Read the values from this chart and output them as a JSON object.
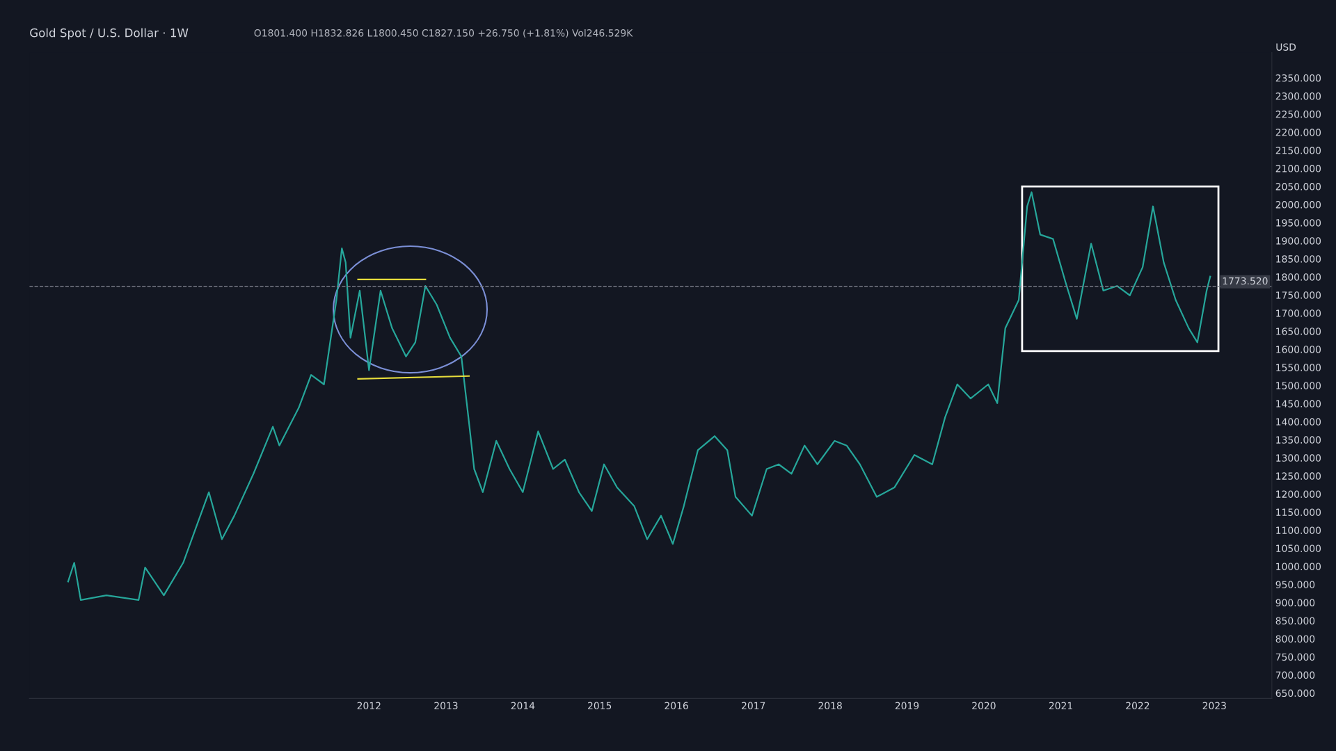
{
  "chart_data": {
    "type": "line",
    "title": "Gold Spot / U.S. Dollar · 1W",
    "subtitle": "O1801.400 H1832.826 L1800.450 C1827.150 +26.750 (+1.81%) Vol246.529K",
    "series": [
      {
        "color": "#26a69a",
        "x": [
          "2008-02",
          "2008-03",
          "2008-04",
          "2008-08",
          "2009-01",
          "2009-02",
          "2009-05",
          "2009-08",
          "2009-12",
          "2010-02",
          "2010-04",
          "2010-07",
          "2010-10",
          "2010-11",
          "2011-02",
          "2011-04",
          "2011-06",
          "2011-07-30",
          "2011-08-25",
          "2011-09-12",
          "2011-10-05",
          "2011-11-18",
          "2012-01-01",
          "2012-02-25",
          "2012-04-20",
          "2012-06-25",
          "2012-08-08",
          "2012-09-25",
          "2012-11-18",
          "2013-01-20",
          "2013-03-15",
          "2013-04-20",
          "2013-05-15",
          "2013-06-25",
          "2013-08-28",
          "2013-10-30",
          "2014-01-01",
          "2014-03-15",
          "2014-05-25",
          "2014-07-20",
          "2014-09-25",
          "2014-11-25",
          "2015-01-22",
          "2015-03-25",
          "2015-06-15",
          "2015-08-15",
          "2015-10-20",
          "2015-12-15",
          "2016-02-05",
          "2016-04-12",
          "2016-07-01",
          "2016-08-30",
          "2016-10-08",
          "2016-12-25",
          "2017-03-05",
          "2017-05-01",
          "2017-07-01",
          "2017-09-01",
          "2017-11-01",
          "2018-01-22",
          "2018-03-20",
          "2018-05-22",
          "2018-08-10",
          "2018-11-02",
          "2019-02-05",
          "2019-05-01",
          "2019-07-01",
          "2019-08-28",
          "2019-10-30",
          "2020-01-22",
          "2020-03-05",
          "2020-04-12",
          "2020-06-15",
          "2020-07-25",
          "2020-08-15",
          "2020-09-25",
          "2020-11-25",
          "2021-01-22",
          "2021-03-18",
          "2021-05-25",
          "2021-07-22",
          "2021-09-25",
          "2021-11-25",
          "2022-01-25",
          "2022-03-15",
          "2022-05-05",
          "2022-07-01",
          "2022-09-01",
          "2022-10-12",
          "2022-11-25",
          "2022-12-12"
        ],
        "values": [
          958,
          1010,
          907,
          920,
          907,
          997,
          920,
          1010,
          1205,
          1075,
          1140,
          1256,
          1386,
          1334,
          1438,
          1529,
          1503,
          1736,
          1879,
          1840,
          1632,
          1762,
          1542,
          1762,
          1658,
          1580,
          1619,
          1775,
          1723,
          1632,
          1580,
          1399,
          1269,
          1205,
          1347,
          1269,
          1205,
          1373,
          1269,
          1295,
          1205,
          1153,
          1282,
          1218,
          1166,
          1075,
          1140,
          1062,
          1166,
          1321,
          1360,
          1321,
          1192,
          1140,
          1269,
          1282,
          1256,
          1334,
          1282,
          1347,
          1334,
          1282,
          1192,
          1218,
          1308,
          1282,
          1412,
          1503,
          1464,
          1503,
          1451,
          1658,
          1736,
          1995,
          2034,
          1917,
          1905,
          1788,
          1684,
          1892,
          1762,
          1775,
          1749,
          1827,
          1995,
          1840,
          1736,
          1658,
          1619,
          1762,
          1801
        ]
      },
      {
        "color": "#e6dc3c",
        "x": [
          "2011-11-10",
          "2012-09-25"
        ],
        "values": [
          1793,
          1793
        ]
      },
      {
        "color": "#e6dc3c",
        "x": [
          "2011-11-10",
          "2013-04-20"
        ],
        "values": [
          1518,
          1526
        ]
      }
    ],
    "xlim": [
      "2007-08",
      "2023-10"
    ],
    "xticks": [
      "2012",
      "2013",
      "2014",
      "2015",
      "2016",
      "2017",
      "2018",
      "2019",
      "2020",
      "2021",
      "2022",
      "2023"
    ],
    "ylim": [
      635,
      2420
    ],
    "yticks": [
      {
        "value": 650,
        "label": "650.000"
      },
      {
        "value": 700,
        "label": "700.000"
      },
      {
        "value": 750,
        "label": "750.000"
      },
      {
        "value": 800,
        "label": "800.000"
      },
      {
        "value": 850,
        "label": "850.000"
      },
      {
        "value": 900,
        "label": "900.000"
      },
      {
        "value": 950,
        "label": "950.000"
      },
      {
        "value": 1000,
        "label": "1000.000"
      },
      {
        "value": 1050,
        "label": "1050.000"
      },
      {
        "value": 1100,
        "label": "1100.000"
      },
      {
        "value": 1150,
        "label": "1150.000"
      },
      {
        "value": 1200,
        "label": "1200.000"
      },
      {
        "value": 1250,
        "label": "1250.000"
      },
      {
        "value": 1300,
        "label": "1300.000"
      },
      {
        "value": 1350,
        "label": "1350.000"
      },
      {
        "value": 1400,
        "label": "1400.000"
      },
      {
        "value": 1450,
        "label": "1450.000"
      },
      {
        "value": 1500,
        "label": "1500.000"
      },
      {
        "value": 1550,
        "label": "1550.000"
      },
      {
        "value": 1600,
        "label": "1600.000"
      },
      {
        "value": 1650,
        "label": "1650.000"
      },
      {
        "value": 1700,
        "label": "1700.000"
      },
      {
        "value": 1750,
        "label": "1750.000"
      },
      {
        "value": 1800,
        "label": "1800.000"
      },
      {
        "value": 1850,
        "label": "1850.000"
      },
      {
        "value": 1900,
        "label": "1900.000"
      },
      {
        "value": 1950,
        "label": "1950.000"
      },
      {
        "value": 2000,
        "label": "2000.000"
      },
      {
        "value": 2050,
        "label": "2050.000"
      },
      {
        "value": 2100,
        "label": "2100.000"
      },
      {
        "value": 2150,
        "label": "2150.000"
      },
      {
        "value": 2200,
        "label": "2200.000"
      },
      {
        "value": 2250,
        "label": "2250.000"
      },
      {
        "value": 2300,
        "label": "2300.000"
      },
      {
        "value": 2350,
        "label": "2350.000"
      }
    ],
    "ylabel": "USD",
    "ref_lines": [
      {
        "axis": "y",
        "value": 1773.52,
        "label": "1773.520",
        "color": "#787b86",
        "line_style": "dashed"
      }
    ],
    "grid": false,
    "legend": false
  }
}
